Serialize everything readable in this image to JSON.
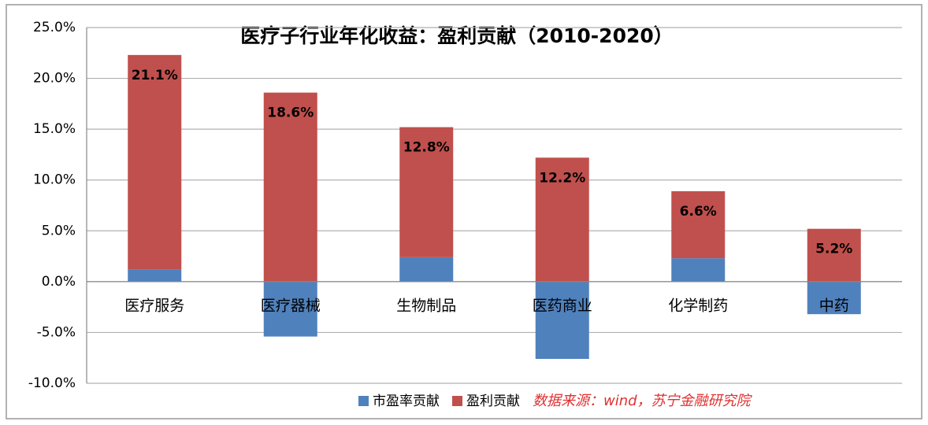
{
  "chart_data": {
    "type": "stacked_bar",
    "title": "医疗子行业年化收益：盈利贡献（2010-2020）",
    "categories": [
      "医疗服务",
      "医疗器械",
      "生物制品",
      "医药商业",
      "化学制药",
      "中药"
    ],
    "series": [
      {
        "name": "市盈率贡献",
        "color": "#4f81bd",
        "values": [
          1.2,
          -5.4,
          2.4,
          -7.6,
          2.3,
          -3.2
        ]
      },
      {
        "name": "盈利贡献",
        "color": "#c0504d",
        "values": [
          21.1,
          18.6,
          12.8,
          12.2,
          6.6,
          5.2
        ],
        "value_labels": [
          "21.1%",
          "18.6%",
          "12.8%",
          "12.2%",
          "6.6%",
          "5.2%"
        ]
      }
    ],
    "ylim": [
      -10,
      25
    ],
    "yticks": [
      {
        "value": -10,
        "label": "-10.0%"
      },
      {
        "value": -5,
        "label": "-5.0%"
      },
      {
        "value": 0,
        "label": "0.0%"
      },
      {
        "value": 5,
        "label": "5.0%"
      },
      {
        "value": 10,
        "label": "10.0%"
      },
      {
        "value": 15,
        "label": "15.0%"
      },
      {
        "value": 20,
        "label": "20.0%"
      },
      {
        "value": 25,
        "label": "25.0%"
      }
    ],
    "grid": true,
    "legend": "bottom",
    "source": "数据来源：wind，苏宁金融研究院"
  }
}
